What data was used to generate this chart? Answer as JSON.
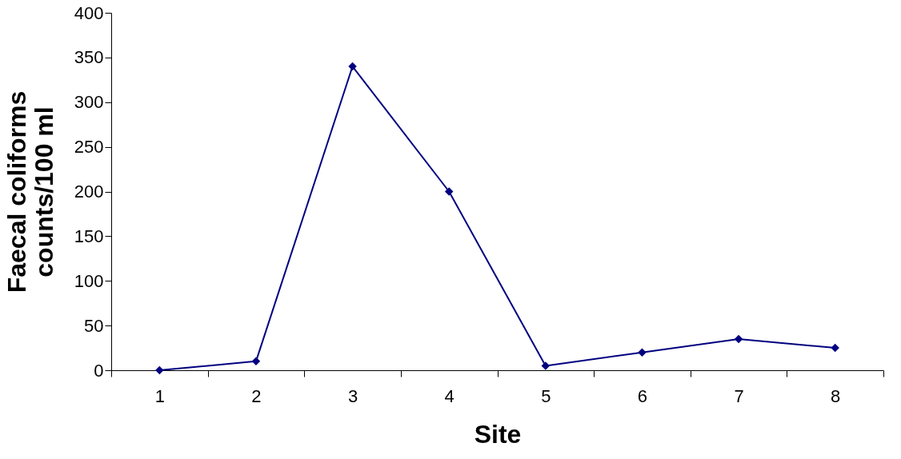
{
  "chart_data": {
    "type": "line",
    "xlabel": "Site",
    "ylabel": "Faecal coliforms\ncounts/100 ml",
    "categories": [
      "1",
      "2",
      "3",
      "4",
      "5",
      "6",
      "7",
      "8"
    ],
    "series": [
      {
        "color": "#000080",
        "values": [
          0,
          10,
          340,
          200,
          5,
          20,
          35,
          25
        ]
      }
    ],
    "ylim": [
      0,
      400
    ],
    "yticks": [
      0,
      50,
      100,
      150,
      200,
      250,
      300,
      350,
      400
    ],
    "grid": false,
    "marker": "diamond",
    "line_style": "solid"
  }
}
